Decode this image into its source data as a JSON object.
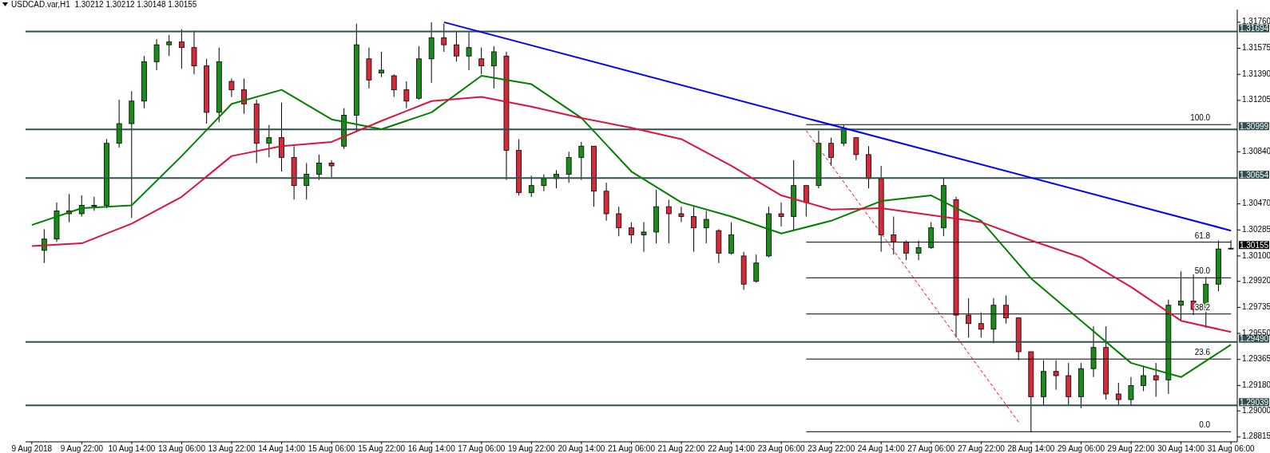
{
  "chart_data": {
    "type": "candlestick",
    "title": "USDCAD.var,H1  1.30212 1.30212 1.30148 1.30155",
    "categories": [
      "9 Aug 2018",
      null,
      null,
      null,
      "9 Aug 22:00",
      null,
      null,
      null,
      "10 Aug 14:00",
      null,
      null,
      null,
      "13 Aug 06:00",
      null,
      null,
      null,
      "13 Aug 22:00",
      null,
      null,
      null,
      "14 Aug 14:00",
      null,
      null,
      null,
      "15 Aug 06:00",
      null,
      null,
      null,
      "15 Aug 22:00",
      null,
      null,
      null,
      "16 Aug 14:00",
      null,
      null,
      null,
      "17 Aug 06:00",
      null,
      null,
      null,
      "19 Aug 22:00",
      null,
      null,
      null,
      "20 Aug 14:00",
      null,
      null,
      null,
      "21 Aug 06:00",
      null,
      null,
      null,
      "21 Aug 22:00",
      null,
      null,
      null,
      "22 Aug 14:00",
      null,
      null,
      null,
      "23 Aug 06:00",
      null,
      null,
      null,
      "23 Aug 22:00",
      null,
      null,
      null,
      "24 Aug 14:00",
      null,
      null,
      null,
      "27 Aug 06:00",
      null,
      null,
      null,
      "27 Aug 22:00",
      null,
      null,
      null,
      "28 Aug 14:00",
      null,
      null,
      null,
      "29 Aug 06:00",
      null,
      null,
      null,
      "29 Aug 22:00",
      null,
      null,
      null,
      "30 Aug 14:00",
      null,
      null,
      null,
      "31 Aug 06:00"
    ],
    "ohlc": [
      null,
      [
        1.3014,
        1.3029,
        1.3005,
        1.3022
      ],
      [
        1.3022,
        1.3048,
        1.302,
        1.3042
      ],
      [
        1.3042,
        1.3054,
        1.3034,
        1.304
      ],
      [
        1.304,
        1.3053,
        1.3038,
        1.3046
      ],
      [
        1.3046,
        1.3052,
        1.3042,
        1.3046
      ],
      [
        1.3046,
        1.3093,
        1.3044,
        1.309
      ],
      [
        1.309,
        1.3121,
        1.3087,
        1.3104
      ],
      [
        1.3104,
        1.3127,
        1.3037,
        1.312
      ],
      [
        1.312,
        1.3152,
        1.3115,
        1.3148
      ],
      [
        1.3148,
        1.3164,
        1.3142,
        1.316
      ],
      [
        1.316,
        1.3167,
        1.3152,
        1.3162
      ],
      [
        1.3162,
        1.3171,
        1.3143,
        1.3158
      ],
      [
        1.3158,
        1.317,
        1.3139,
        1.3145
      ],
      [
        1.3145,
        1.315,
        1.3104,
        1.3112
      ],
      [
        1.3112,
        1.3158,
        1.3105,
        1.3148
      ],
      [
        1.3134,
        1.3136,
        1.3123,
        1.3128
      ],
      [
        1.3128,
        1.3136,
        1.3111,
        1.3118
      ],
      [
        1.3118,
        1.3121,
        1.3076,
        1.309
      ],
      [
        1.309,
        1.3103,
        1.308,
        1.3094
      ],
      [
        1.3094,
        1.3119,
        1.307,
        1.308
      ],
      [
        1.308,
        1.3088,
        1.305,
        1.306
      ],
      [
        1.306,
        1.3076,
        1.305,
        1.3068
      ],
      [
        1.3068,
        1.3082,
        1.3064,
        1.3076
      ],
      [
        1.3076,
        1.3078,
        1.3066,
        1.3074
      ],
      [
        1.3088,
        1.3115,
        1.3086,
        1.311
      ],
      [
        1.311,
        1.3175,
        1.3098,
        1.316
      ],
      [
        1.315,
        1.3158,
        1.3129,
        1.3135
      ],
      [
        1.314,
        1.3155,
        1.3137,
        1.3142
      ],
      [
        1.3138,
        1.3139,
        1.3123,
        1.3128
      ],
      [
        1.3128,
        1.3134,
        1.3115,
        1.312
      ],
      [
        1.3122,
        1.3159,
        1.3121,
        1.315
      ],
      [
        1.315,
        1.3176,
        1.3133,
        1.3165
      ],
      [
        1.3165,
        1.3175,
        1.3155,
        1.316
      ],
      [
        1.316,
        1.3169,
        1.3148,
        1.3152
      ],
      [
        1.3152,
        1.3169,
        1.3142,
        1.3158
      ],
      [
        1.315,
        1.3158,
        1.3139,
        1.3145
      ],
      [
        1.3145,
        1.3159,
        1.3129,
        1.3155
      ],
      [
        1.3152,
        1.3155,
        1.3064,
        1.3085
      ],
      [
        1.3085,
        1.3093,
        1.3053,
        1.3055
      ],
      [
        1.3055,
        1.3067,
        1.3052,
        1.306
      ],
      [
        1.306,
        1.3068,
        1.3056,
        1.3065
      ],
      [
        1.3065,
        1.3071,
        1.3058,
        1.3068
      ],
      [
        1.3068,
        1.3084,
        1.3062,
        1.308
      ],
      [
        1.308,
        1.3091,
        1.3064,
        1.3088
      ],
      [
        1.3088,
        1.3088,
        1.3045,
        1.3056
      ],
      [
        1.3056,
        1.3062,
        1.3035,
        1.304
      ],
      [
        1.304,
        1.3045,
        1.3024,
        1.303
      ],
      [
        1.303,
        1.3034,
        1.3019,
        1.3025
      ],
      [
        1.3025,
        1.3034,
        1.3013,
        1.3027
      ],
      [
        1.3027,
        1.3057,
        1.3019,
        1.3045
      ],
      [
        1.3045,
        1.305,
        1.3019,
        1.304
      ],
      [
        1.304,
        1.3045,
        1.3034,
        1.3038
      ],
      [
        1.3038,
        1.3045,
        1.3013,
        1.303
      ],
      [
        1.303,
        1.3042,
        1.3019,
        1.3036
      ],
      [
        1.3028,
        1.3029,
        1.3005,
        1.3012
      ],
      [
        1.3012,
        1.3034,
        1.3011,
        1.3025
      ],
      [
        1.301,
        1.3013,
        1.2986,
        1.299
      ],
      [
        1.2992,
        1.3011,
        1.2991,
        1.3005
      ],
      [
        1.301,
        1.3045,
        1.3009,
        1.304
      ],
      [
        1.304,
        1.3048,
        1.3031,
        1.3038
      ],
      [
        1.3038,
        1.3078,
        1.3028,
        1.306
      ],
      [
        1.306,
        1.306,
        1.3038,
        1.3048
      ],
      [
        1.306,
        1.3099,
        1.3058,
        1.309
      ],
      [
        1.309,
        1.3094,
        1.3074,
        1.308
      ],
      [
        1.309,
        1.3103,
        1.3088,
        1.31
      ],
      [
        1.3094,
        1.3094,
        1.3078,
        1.3082
      ],
      [
        1.3082,
        1.3088,
        1.3058,
        1.3065
      ],
      [
        1.3065,
        1.3074,
        1.3013,
        1.3025
      ],
      [
        1.3025,
        1.3038,
        1.3011,
        1.302
      ],
      [
        1.302,
        1.3021,
        1.3007,
        1.3012
      ],
      [
        1.3012,
        1.3021,
        1.3007,
        1.3016
      ],
      [
        1.3016,
        1.3034,
        1.3015,
        1.303
      ],
      [
        1.303,
        1.3066,
        1.3024,
        1.306
      ],
      [
        1.305,
        1.3052,
        1.2952,
        1.2968
      ],
      [
        1.2968,
        1.298,
        1.2952,
        1.2962
      ],
      [
        1.2962,
        1.297,
        1.2952,
        1.2958
      ],
      [
        1.2958,
        1.298,
        1.2948,
        1.2975
      ],
      [
        1.2975,
        1.2982,
        1.2962,
        1.2966
      ],
      [
        1.2966,
        1.2966,
        1.2936,
        1.2942
      ],
      [
        1.2942,
        1.2942,
        1.2885,
        1.291
      ],
      [
        1.291,
        1.2936,
        1.2904,
        1.2928
      ],
      [
        1.2928,
        1.2936,
        1.2915,
        1.2925
      ],
      [
        1.2925,
        1.2934,
        1.2904,
        1.291
      ],
      [
        1.291,
        1.2934,
        1.2902,
        1.293
      ],
      [
        1.293,
        1.296,
        1.2924,
        1.2945
      ],
      [
        1.2945,
        1.296,
        1.2908,
        1.2912
      ],
      [
        1.2912,
        1.292,
        1.2904,
        1.2908
      ],
      [
        1.2908,
        1.2924,
        1.2904,
        1.2918
      ],
      [
        1.2918,
        1.2932,
        1.2914,
        1.2925
      ],
      [
        1.2925,
        1.2934,
        1.291,
        1.2922
      ],
      [
        1.2922,
        1.2979,
        1.2912,
        1.2975
      ],
      [
        1.2975,
        1.2999,
        1.2964,
        1.2978
      ],
      [
        1.2978,
        1.2997,
        1.2968,
        1.2972
      ],
      [
        1.2972,
        1.2995,
        1.2959,
        1.299
      ],
      [
        1.299,
        1.3021,
        1.2985,
        1.3015
      ],
      [
        1.3015,
        1.30212,
        1.30148,
        1.30155
      ]
    ],
    "colors": [
      null,
      "#1a8c1a",
      "#1a8c1a",
      "#d42a3a",
      "#1a8c1a",
      "#1a8c1a",
      "#1a8c1a",
      "#1a8c1a",
      "#1a8c1a",
      "#1a8c1a",
      "#1a8c1a",
      "#1a8c1a",
      "#d42a3a",
      "#d42a3a",
      "#d42a3a",
      "#1a8c1a",
      "#d42a3a",
      "#d42a3a",
      "#d42a3a",
      "#1a8c1a",
      "#d42a3a",
      "#d42a3a",
      "#1a8c1a",
      "#1a8c1a",
      "#d42a3a",
      "#1a8c1a",
      "#1a8c1a",
      "#d42a3a",
      "#1a8c1a",
      "#d42a3a",
      "#d42a3a",
      "#1a8c1a",
      "#1a8c1a",
      "#d42a3a",
      "#d42a3a",
      "#1a8c1a",
      "#d42a3a",
      "#1a8c1a",
      "#d42a3a",
      "#d42a3a",
      "#1a8c1a",
      "#1a8c1a",
      "#1a8c1a",
      "#1a8c1a",
      "#1a8c1a",
      "#d42a3a",
      "#d42a3a",
      "#d42a3a",
      "#d42a3a",
      "#1a8c1a",
      "#1a8c1a",
      "#d42a3a",
      "#d42a3a",
      "#d42a3a",
      "#1a8c1a",
      "#d42a3a",
      "#1a8c1a",
      "#d42a3a",
      "#1a8c1a",
      "#1a8c1a",
      "#d42a3a",
      "#1a8c1a",
      "#d42a3a",
      "#1a8c1a",
      "#d42a3a",
      "#1a8c1a",
      "#d42a3a",
      "#d42a3a",
      "#d42a3a",
      "#d42a3a",
      "#d42a3a",
      "#1a8c1a",
      "#1a8c1a",
      "#1a8c1a",
      "#d42a3a",
      "#d42a3a",
      "#d42a3a",
      "#1a8c1a",
      "#d42a3a",
      "#d42a3a",
      "#d42a3a",
      "#1a8c1a",
      "#d42a3a",
      "#d42a3a",
      "#1a8c1a",
      "#1a8c1a",
      "#d42a3a",
      "#d42a3a",
      "#1a8c1a",
      "#1a8c1a",
      "#d42a3a",
      "#1a8c1a",
      "#1a8c1a",
      "#d42a3a",
      "#1a8c1a",
      "#1a8c1a",
      "#1a8c1a"
    ],
    "series": [
      {
        "type": "line",
        "color": "#008000",
        "values": [
          1.3032,
          null,
          null,
          null,
          1.3044,
          null,
          null,
          null,
          1.3046,
          null,
          null,
          null,
          1.3081,
          null,
          null,
          null,
          1.3118,
          null,
          null,
          null,
          1.3128,
          null,
          null,
          null,
          1.3107,
          null,
          null,
          null,
          1.31,
          null,
          null,
          null,
          1.3112,
          null,
          null,
          null,
          1.3138,
          null,
          null,
          null,
          1.3132,
          null,
          null,
          null,
          1.3108,
          null,
          null,
          null,
          1.307,
          null,
          null,
          null,
          1.3048,
          null,
          null,
          null,
          1.3038,
          null,
          null,
          null,
          1.3026,
          null,
          null,
          null,
          1.3035,
          null,
          null,
          null,
          1.3049,
          null,
          null,
          null,
          1.3053,
          null,
          null,
          null,
          1.3035,
          null,
          null,
          null,
          1.2994,
          null,
          null,
          null,
          1.2964,
          null,
          null,
          null,
          1.2934,
          null,
          null,
          null,
          1.2924,
          null,
          null,
          null,
          1.2947
        ]
      },
      {
        "type": "line",
        "color": "#dc143c",
        "values": [
          1.3017,
          null,
          null,
          null,
          1.3019,
          null,
          null,
          null,
          1.3033,
          null,
          null,
          null,
          1.3052,
          null,
          null,
          null,
          1.3081,
          null,
          null,
          null,
          1.3088,
          null,
          null,
          null,
          1.3091,
          null,
          null,
          null,
          1.3106,
          null,
          null,
          null,
          1.312,
          null,
          null,
          null,
          1.3123,
          null,
          null,
          null,
          1.3116,
          null,
          null,
          null,
          1.3108,
          null,
          null,
          null,
          1.3101,
          null,
          null,
          null,
          1.3093,
          null,
          null,
          null,
          1.3074,
          null,
          null,
          null,
          1.3053,
          null,
          null,
          null,
          1.3043,
          null,
          null,
          null,
          1.3044,
          null,
          null,
          null,
          1.3039,
          null,
          null,
          null,
          1.3034,
          null,
          null,
          null,
          1.3021,
          null,
          null,
          null,
          1.3009,
          null,
          null,
          null,
          1.2988,
          null,
          null,
          null,
          1.2964,
          null,
          null,
          null,
          1.2956
        ]
      },
      {
        "type": "line",
        "color": "#0000ff",
        "values": [
          null,
          null,
          null,
          null,
          null,
          null,
          null,
          null,
          null,
          null,
          null,
          null,
          null,
          null,
          null,
          null,
          null,
          null,
          null,
          null,
          null,
          null,
          null,
          null,
          null,
          null,
          null,
          null,
          null,
          null,
          null,
          null,
          null,
          1.3176,
          null,
          null,
          null,
          null,
          null,
          null,
          null,
          null,
          null,
          null,
          null,
          null,
          null,
          null,
          null,
          null,
          null,
          null,
          null,
          null,
          null,
          null,
          null,
          null,
          null,
          null,
          null,
          null,
          null,
          null,
          null,
          null,
          null,
          null,
          null,
          null,
          null,
          null,
          null,
          null,
          null,
          null,
          null,
          null,
          null,
          null,
          null,
          null,
          null,
          null,
          null,
          null,
          null,
          null,
          null,
          null,
          null,
          null,
          null,
          null,
          null,
          null,
          1.3028
        ]
      },
      {
        "type": "line",
        "color": "#ff0000",
        "line_style": "dashed",
        "values": [
          null,
          null,
          null,
          null,
          null,
          null,
          null,
          null,
          null,
          null,
          null,
          null,
          null,
          null,
          null,
          null,
          null,
          null,
          null,
          null,
          null,
          null,
          null,
          null,
          null,
          null,
          null,
          null,
          null,
          null,
          null,
          null,
          null,
          null,
          null,
          null,
          null,
          null,
          null,
          null,
          null,
          null,
          null,
          null,
          null,
          null,
          null,
          null,
          null,
          null,
          null,
          null,
          null,
          null,
          null,
          null,
          null,
          null,
          null,
          null,
          null,
          null,
          1.3099,
          null,
          null,
          null,
          null,
          null,
          null,
          null,
          null,
          null,
          null,
          null,
          null,
          null,
          null,
          null,
          null,
          1.2892,
          null,
          null,
          null,
          null,
          null,
          null,
          null,
          null,
          null,
          null,
          null,
          null,
          null,
          null,
          null,
          null,
          null
        ]
      }
    ],
    "ylim": [
      1.2878,
      1.3185
    ],
    "yticks": [
      {
        "value": 1.3176,
        "label": "1.31760"
      },
      {
        "value": 1.31575,
        "label": "1.31575"
      },
      {
        "value": 1.3139,
        "label": "1.31390"
      },
      {
        "value": 1.31205,
        "label": "1.31205"
      },
      {
        "value": 1.3084,
        "label": "1.30840"
      },
      {
        "value": 1.3047,
        "label": "1.30470"
      },
      {
        "value": 1.30285,
        "label": "1.30285"
      },
      {
        "value": 1.301,
        "label": "1.30100"
      },
      {
        "value": 1.2992,
        "label": "1.29920"
      },
      {
        "value": 1.29735,
        "label": "1.29735"
      },
      {
        "value": 1.2955,
        "label": "1.29550"
      },
      {
        "value": 1.29365,
        "label": "1.29365"
      },
      {
        "value": 1.2918,
        "label": "1.29180"
      },
      {
        "value": 1.29,
        "label": "1.29000"
      },
      {
        "value": 1.28815,
        "label": "1.28815"
      }
    ],
    "ref_lines": [
      {
        "axis": "y",
        "value": 1.31694,
        "label": "1.31694",
        "color": "#2f4f4f"
      },
      {
        "axis": "y",
        "value": 1.30999,
        "label": "1.30999",
        "color": "#2f4f4f"
      },
      {
        "axis": "y",
        "value": 1.30654,
        "label": "1.30654",
        "color": "#2f4f4f"
      },
      {
        "axis": "y",
        "value": 1.2949,
        "label": "1.29490",
        "color": "#2f4f4f"
      },
      {
        "axis": "y",
        "value": 1.29039,
        "label": "1.29039",
        "color": "#2f4f4f"
      },
      {
        "axis": "y",
        "value": 1.31033,
        "color": "#000000"
      },
      {
        "axis": "y",
        "value": 1.30198,
        "color": "#000000"
      },
      {
        "axis": "y",
        "value": 1.29945,
        "color": "#000000"
      },
      {
        "axis": "y",
        "value": 1.29688,
        "color": "#000000"
      },
      {
        "axis": "y",
        "value": 1.29368,
        "color": "#000000"
      },
      {
        "axis": "y",
        "value": 1.28852,
        "color": "#000000"
      }
    ],
    "annotations": [
      "1.30155",
      {
        "text": "100.0",
        "y": 1.31033
      },
      {
        "text": "61.8",
        "y": 1.30198
      },
      {
        "text": "50.0",
        "y": 1.29945
      },
      {
        "text": "38.2",
        "y": 1.29688
      },
      {
        "text": "23.6",
        "y": 1.29368
      },
      {
        "text": "0.0",
        "y": 1.28852
      }
    ],
    "grid": false
  }
}
